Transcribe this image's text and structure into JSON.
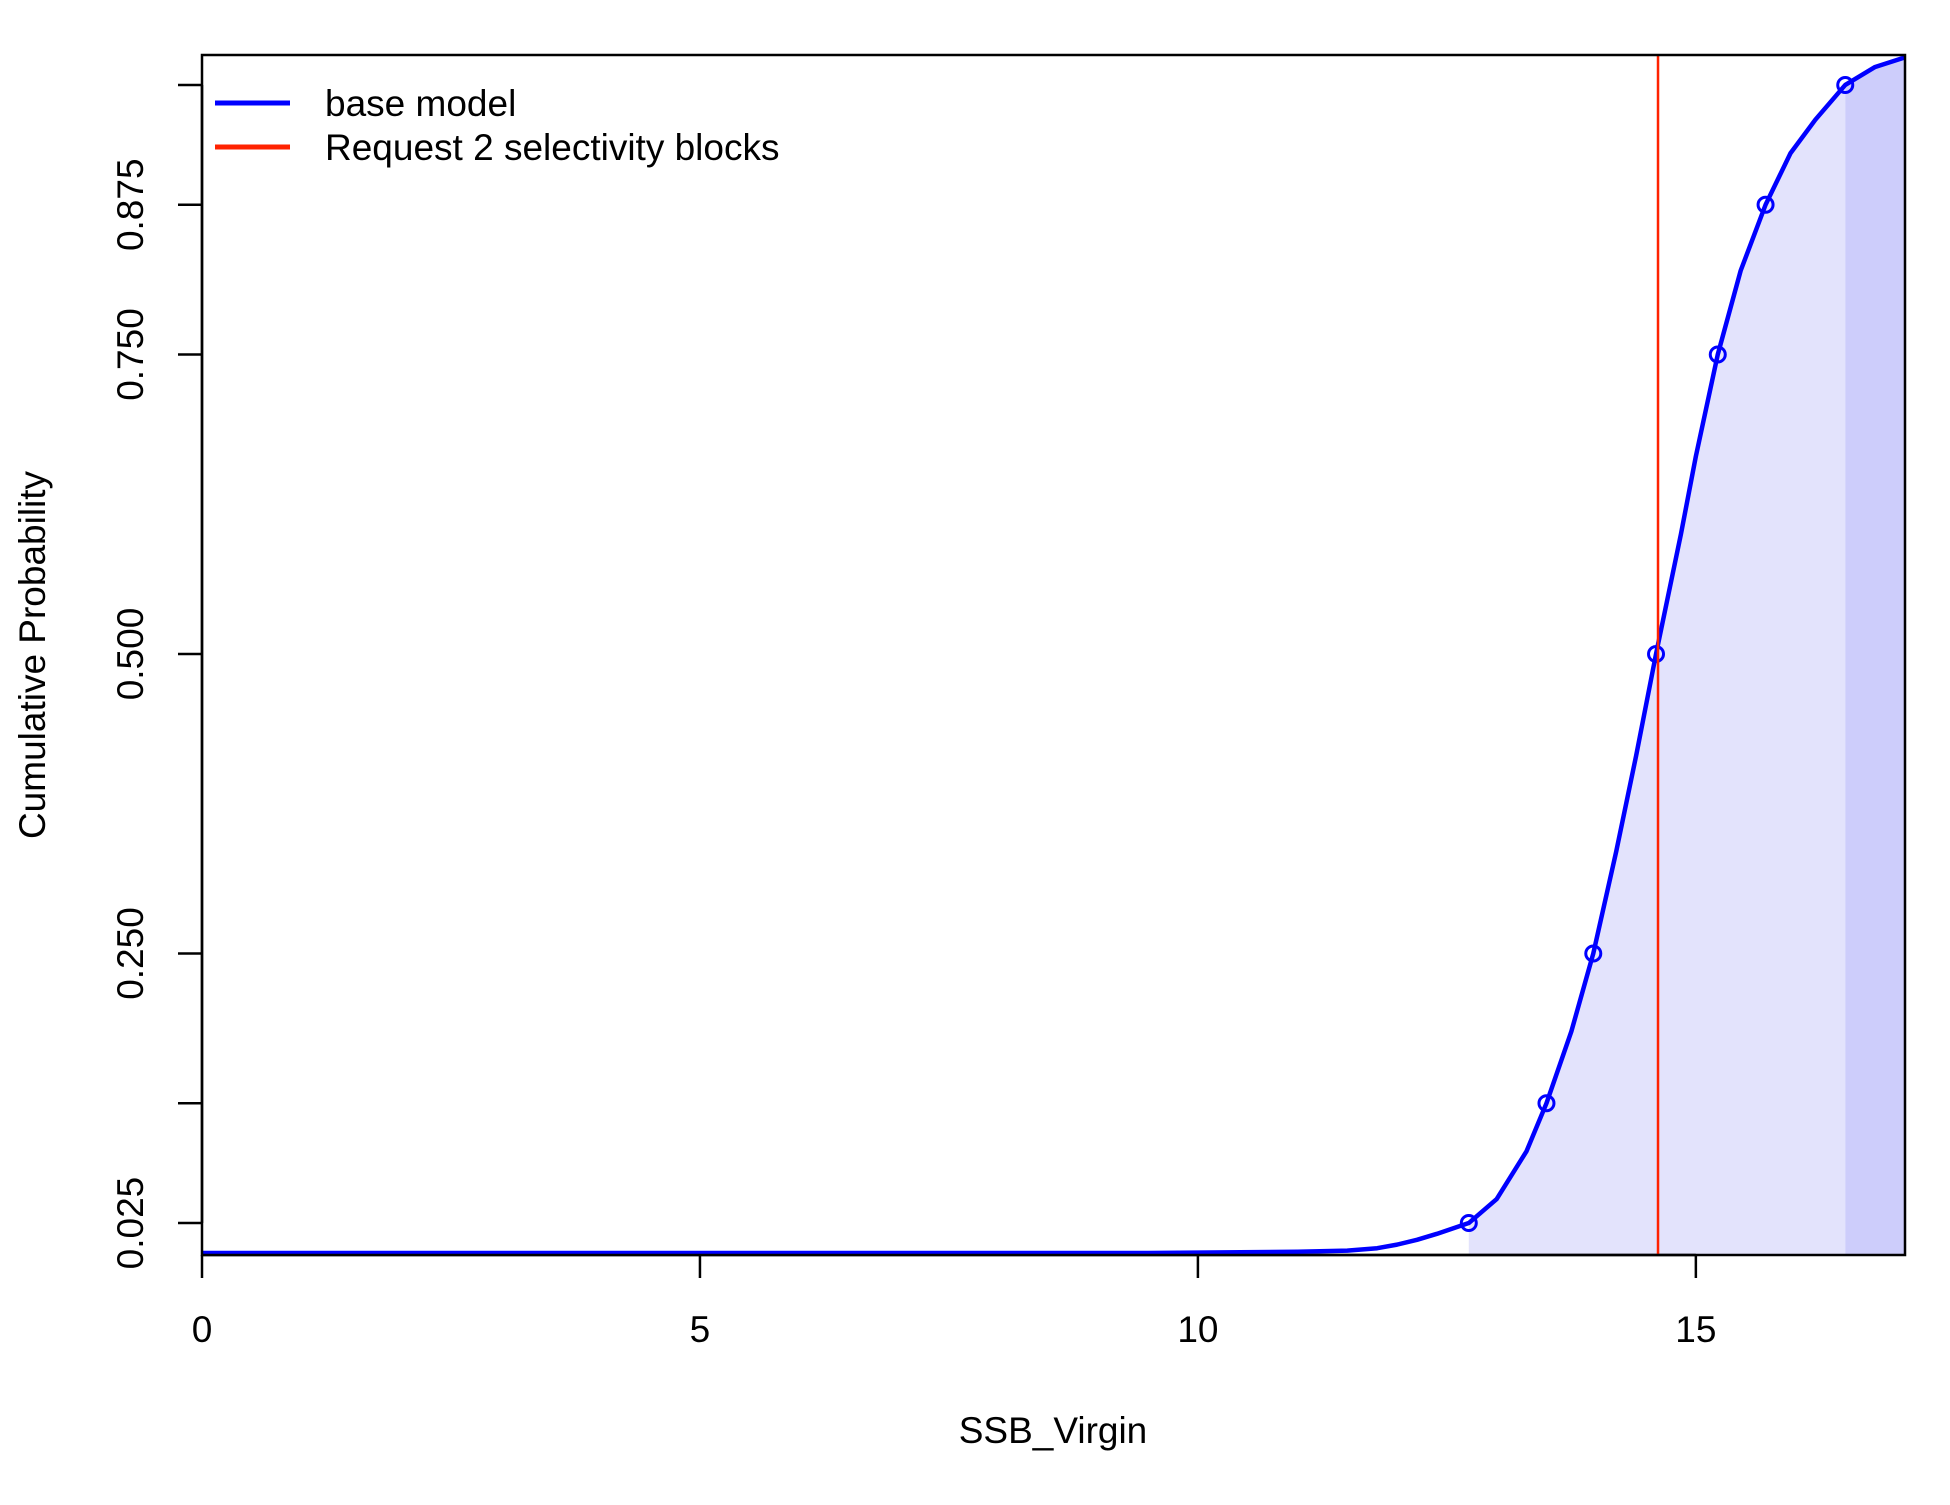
{
  "chart_data": {
    "type": "line",
    "xlabel": "SSB_Virgin",
    "ylabel": "Cumulative Probability",
    "xlim": [
      0,
      17.1
    ],
    "ylim": [
      0,
      1
    ],
    "x_ticks": [
      {
        "value": 0,
        "label": "0"
      },
      {
        "value": 5,
        "label": "5"
      },
      {
        "value": 10,
        "label": "10"
      },
      {
        "value": 15,
        "label": "15"
      }
    ],
    "y_ticks": [
      {
        "value": 0.025,
        "label": "0.025"
      },
      {
        "value": 0.125,
        "label": ""
      },
      {
        "value": 0.25,
        "label": "0.250"
      },
      {
        "value": 0.5,
        "label": "0.500"
      },
      {
        "value": 0.75,
        "label": "0.750"
      },
      {
        "value": 0.875,
        "label": "0.875"
      },
      {
        "value": 0.975,
        "label": ""
      }
    ],
    "series": [
      {
        "name": "base model",
        "color": "#0000ff",
        "curve": [
          [
            0,
            0.0
          ],
          [
            9.5,
            0.0
          ],
          [
            11.0,
            0.001
          ],
          [
            11.5,
            0.002
          ],
          [
            11.8,
            0.004
          ],
          [
            12.0,
            0.007
          ],
          [
            12.2,
            0.011
          ],
          [
            12.4,
            0.016
          ],
          [
            12.72,
            0.025
          ],
          [
            13.0,
            0.045
          ],
          [
            13.3,
            0.085
          ],
          [
            13.5,
            0.125
          ],
          [
            13.75,
            0.185
          ],
          [
            13.97,
            0.25
          ],
          [
            14.2,
            0.335
          ],
          [
            14.4,
            0.415
          ],
          [
            14.6,
            0.5
          ],
          [
            14.85,
            0.6
          ],
          [
            15.0,
            0.665
          ],
          [
            15.22,
            0.75
          ],
          [
            15.45,
            0.82
          ],
          [
            15.7,
            0.875
          ],
          [
            15.95,
            0.918
          ],
          [
            16.2,
            0.946
          ],
          [
            16.5,
            0.975
          ],
          [
            16.8,
            0.99
          ],
          [
            17.1,
            0.998
          ]
        ],
        "quantile_points": [
          [
            12.72,
            0.025
          ],
          [
            13.5,
            0.125
          ],
          [
            13.97,
            0.25
          ],
          [
            14.6,
            0.5
          ],
          [
            15.22,
            0.75
          ],
          [
            15.7,
            0.875
          ],
          [
            16.5,
            0.975
          ]
        ],
        "interval_95": [
          12.72,
          16.5
        ]
      },
      {
        "name": "Request 2 selectivity blocks",
        "color": "#ff2200",
        "vline_x": 14.62
      }
    ],
    "legend": {
      "position": "top-left",
      "entries": [
        {
          "label": "base model",
          "color": "#0000ff"
        },
        {
          "label": "Request 2 selectivity blocks",
          "color": "#ff2200"
        }
      ]
    },
    "shading": {
      "inner_color": "#e3e3fc",
      "outer_color": "#cdcdfb"
    },
    "grid": false
  }
}
